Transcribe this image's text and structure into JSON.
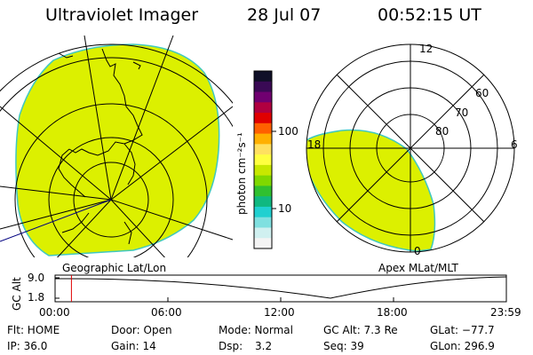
{
  "header": {
    "title": "Ultraviolet Imager",
    "date": "28 Jul 07",
    "time": "00:52:15 UT"
  },
  "geographic_panel": {
    "label": "Geographic Lat/Lon"
  },
  "apex_panel": {
    "label": "Apex MLat/MLT",
    "mlt_labels": {
      "top": "12",
      "left": "18",
      "right": "6",
      "bottom": "0"
    },
    "lat_labels": [
      "60",
      "70",
      "80"
    ]
  },
  "colorbar": {
    "unit_label": "photon cm⁻²s⁻¹",
    "ticks": [
      "100",
      "10"
    ],
    "colors": [
      "#101028",
      "#3a0a55",
      "#700070",
      "#b00040",
      "#e00000",
      "#ff6000",
      "#ffb000",
      "#ffe060",
      "#ffff40",
      "#c8e800",
      "#80d800",
      "#30c030",
      "#10b880",
      "#20d0d0",
      "#80e0e0",
      "#d0f0f0",
      "#f4f4f4"
    ]
  },
  "altitude_plot": {
    "ylabel": "GC Alt",
    "y_ticks": [
      "9.0",
      "1.8"
    ],
    "x_ticks": [
      "00:00",
      "06:00",
      "12:00",
      "18:00",
      "23:59"
    ],
    "current_time_hours": 0.87
  },
  "status": {
    "flt": "Flt: HOME",
    "ip": "IP: 36.0",
    "door": "Door: Open",
    "gain": "Gain: 14",
    "mode": "Mode: Normal",
    "dsp_label": "Dsp:",
    "dsp_value": "3.2",
    "gcalt": "GC Alt: 7.3 Re",
    "seq": "Seq: 39",
    "glat": "GLat: −77.7",
    "glon": "GLon: 296.9"
  },
  "colors": {
    "emission": "#dcf000",
    "emission_edge": "#40c8c0",
    "marker": "#e00000",
    "coast": "#000080"
  }
}
